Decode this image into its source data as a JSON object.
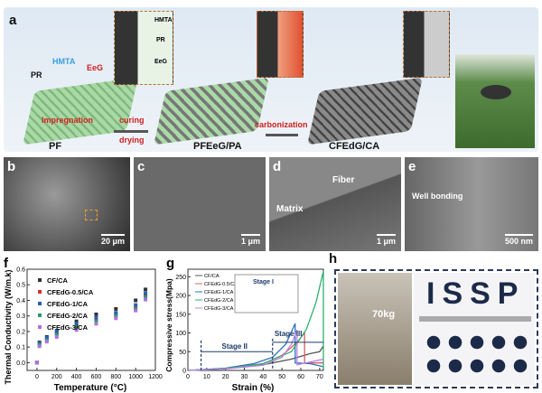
{
  "panel_a": {
    "label": "a",
    "pr": "PR",
    "hmta": "HMTA",
    "eeg": "EeG",
    "impregnation": "Impregnation",
    "curing": "curing",
    "drying": "drying",
    "carbonization": "carbonization",
    "pf": "PF",
    "pf_eeg_pa": "PFEeG/PA",
    "cf_edg_ca": "CFEdG/CA",
    "inset_labels": [
      "HMTA",
      "PR",
      "EeG"
    ],
    "colors": {
      "mesh": "#a9d9a6",
      "carbon": "#6e6e6e",
      "text_red": "#d02020",
      "hmta": "#3aa0e0"
    }
  },
  "panel_b": {
    "label": "b",
    "scale": "20 μm"
  },
  "panel_c": {
    "label": "c",
    "scale": "1 μm"
  },
  "panel_d": {
    "label": "d",
    "scale": "1 μm",
    "fiber": "Fiber",
    "matrix": "Matrix"
  },
  "panel_e": {
    "label": "e",
    "scale": "500 nm",
    "annotation": "Well bonding"
  },
  "panel_h": {
    "label": "h",
    "weight": "70kg",
    "letters": "ISSP"
  },
  "chart_data": [
    {
      "panel": "f",
      "type": "scatter",
      "xlabel": "Temperature (°C)",
      "ylabel": "Thermal Conductivity (W/m.k)",
      "xlim": [
        -100,
        1200
      ],
      "ylim": [
        -0.05,
        0.6
      ],
      "xticks": [
        0,
        200,
        400,
        600,
        800,
        1000,
        1200
      ],
      "yticks": [
        0.0,
        0.1,
        0.2,
        0.3,
        0.4,
        0.5,
        0.6
      ],
      "legend": "top-left",
      "x": [
        0,
        25,
        100,
        200,
        400,
        600,
        800,
        1000,
        1100
      ],
      "series": [
        {
          "name": "CF/CA",
          "color": "#333333",
          "marker": "square",
          "values": [
            0,
            0.13,
            0.165,
            0.205,
            0.265,
            0.31,
            0.345,
            0.4,
            0.47
          ]
        },
        {
          "name": "CFEdG-0.5/CA",
          "color": "#d03030",
          "marker": "circle",
          "values": [
            0,
            0.12,
            0.15,
            0.19,
            0.24,
            0.28,
            0.31,
            0.35,
            0.43
          ]
        },
        {
          "name": "CFEdG-1/CA",
          "color": "#2a5fb0",
          "marker": "triangle",
          "values": [
            0,
            0.125,
            0.16,
            0.2,
            0.25,
            0.29,
            0.32,
            0.37,
            0.445
          ]
        },
        {
          "name": "CFEdG-2/CA",
          "color": "#2a9a6a",
          "marker": "triangle-down",
          "values": [
            0,
            0.115,
            0.145,
            0.18,
            0.23,
            0.265,
            0.3,
            0.345,
            0.42
          ]
        },
        {
          "name": "CFEdG-3/CA",
          "color": "#b070e0",
          "marker": "diamond",
          "values": [
            0,
            0.105,
            0.135,
            0.165,
            0.21,
            0.25,
            0.285,
            0.335,
            0.405
          ]
        }
      ]
    },
    {
      "panel": "g",
      "type": "line",
      "xlabel": "Strain (%)",
      "ylabel": "Compressive stress(Mpa)",
      "xlim": [
        0,
        72
      ],
      "ylim": [
        0,
        270
      ],
      "xticks": [
        0,
        10,
        20,
        30,
        40,
        50,
        60,
        70
      ],
      "yticks": [
        0,
        50,
        100,
        150,
        200,
        250
      ],
      "legend": "top-left",
      "annotations": [
        "Stage I",
        "Stage II",
        "Stage III"
      ],
      "series": [
        {
          "name": "CF/CA",
          "color": "#555555",
          "points": [
            [
              0,
              0
            ],
            [
              20,
              5
            ],
            [
              40,
              15
            ],
            [
              55,
              30
            ],
            [
              65,
              45
            ],
            [
              70,
              50
            ],
            [
              72,
              65
            ]
          ]
        },
        {
          "name": "CFEdG-0.5/CA",
          "color": "#d06060",
          "points": [
            [
              0,
              0
            ],
            [
              20,
              5
            ],
            [
              40,
              18
            ],
            [
              50,
              40
            ],
            [
              58,
              75
            ],
            [
              62,
              100
            ],
            [
              62,
              20
            ],
            [
              72,
              20
            ]
          ]
        },
        {
          "name": "CFEdG-1/CA",
          "color": "#2a70c0",
          "points": [
            [
              0,
              0
            ],
            [
              20,
              6
            ],
            [
              35,
              18
            ],
            [
              45,
              35
            ],
            [
              52,
              70
            ],
            [
              57,
              125
            ],
            [
              57,
              20
            ],
            [
              65,
              18
            ],
            [
              72,
              10
            ]
          ]
        },
        {
          "name": "CFEdG-2/CA",
          "color": "#30b070",
          "points": [
            [
              0,
              0
            ],
            [
              20,
              5
            ],
            [
              40,
              18
            ],
            [
              55,
              50
            ],
            [
              63,
              110
            ],
            [
              68,
              180
            ],
            [
              72,
              265
            ],
            [
              72,
              5
            ]
          ]
        },
        {
          "name": "CFEdG-3/CA",
          "color": "#c080e0",
          "points": [
            [
              0,
              0
            ],
            [
              20,
              4
            ],
            [
              40,
              14
            ],
            [
              50,
              35
            ],
            [
              55,
              70
            ],
            [
              58,
              108
            ],
            [
              58,
              15
            ],
            [
              72,
              30
            ]
          ]
        }
      ]
    }
  ]
}
